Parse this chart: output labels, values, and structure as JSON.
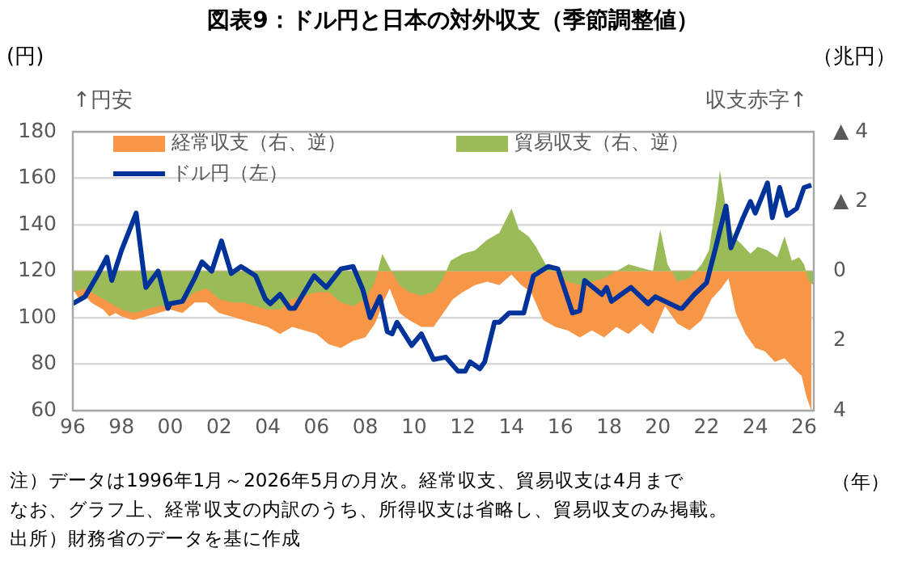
{
  "chart_data": {
    "type": "line",
    "title": "図表9：ドル円と日本の対外収支（季節調整値）",
    "xlabel": "（年）",
    "ylabel": "(円)",
    "y2label": "（兆円）",
    "annotations": [
      "↑円安",
      "収支赤字↑",
      "注）データは1996年1月～2026年5月の月次。経常収支、貿易収支は4月まで",
      "なお、グラフ上、経常収支の内訳のうち、所得収支は省略し、貿易収支のみ掲載。",
      "出所）財務省のデータを基に作成"
    ],
    "xlim": [
      1996,
      2026.4
    ],
    "xticks": [
      {
        "value": 1996,
        "label": "96"
      },
      {
        "value": 1998,
        "label": "98"
      },
      {
        "value": 2000,
        "label": "00"
      },
      {
        "value": 2002,
        "label": "02"
      },
      {
        "value": 2004,
        "label": "04"
      },
      {
        "value": 2006,
        "label": "06"
      },
      {
        "value": 2008,
        "label": "08"
      },
      {
        "value": 2010,
        "label": "10"
      },
      {
        "value": 2012,
        "label": "12"
      },
      {
        "value": 2014,
        "label": "14"
      },
      {
        "value": 2016,
        "label": "16"
      },
      {
        "value": 2018,
        "label": "18"
      },
      {
        "value": 2020,
        "label": "20"
      },
      {
        "value": 2022,
        "label": "22"
      },
      {
        "value": 2024,
        "label": "24"
      },
      {
        "value": 2026,
        "label": "26"
      }
    ],
    "ylim": [
      60,
      180
    ],
    "yticks": [
      60,
      80,
      100,
      120,
      140,
      160,
      180
    ],
    "y2lim": [
      4,
      -4
    ],
    "y2ticks": [
      {
        "value": -4,
        "label": "▲ 4"
      },
      {
        "value": -2,
        "label": "▲ 2"
      },
      0,
      2,
      4
    ],
    "grid": "y",
    "legend": "top",
    "series": [
      {
        "name": "経常収支（右、逆）",
        "color": "#f79646",
        "type": "area",
        "axis": "y2",
        "x": [
          1996,
          1996.25,
          1996.5,
          1996.75,
          1997,
          1997.25,
          1997.5,
          1997.75,
          1998,
          1998.5,
          1999,
          1999.5,
          2000,
          2000.5,
          2001,
          2001.5,
          2002,
          2002.5,
          2003,
          2003.5,
          2004,
          2004.5,
          2005,
          2005.5,
          2006,
          2006.5,
          2007,
          2007.5,
          2008,
          2008.4,
          2008.8,
          2009,
          2009.4,
          2009.8,
          2010.3,
          2010.8,
          2011.2,
          2011.6,
          2012,
          2012.5,
          2013,
          2013.5,
          2014,
          2014.4,
          2014.8,
          2015.3,
          2015.8,
          2016.3,
          2016.8,
          2017.3,
          2017.8,
          2018.3,
          2018.8,
          2019.3,
          2019.8,
          2020.3,
          2020.8,
          2021.3,
          2021.8,
          2022.2,
          2022.6,
          2022.9,
          2023.2,
          2023.6,
          2024,
          2024.4,
          2024.8,
          2025.2,
          2025.6,
          2025.9,
          2026.1,
          2026.3
        ],
        "values": [
          0.5,
          0.8,
          0.7,
          0.9,
          1.0,
          1.1,
          1.3,
          1.2,
          1.3,
          1.4,
          1.3,
          1.2,
          1.1,
          1.2,
          0.9,
          0.9,
          1.2,
          1.3,
          1.4,
          1.5,
          1.6,
          1.8,
          1.6,
          1.7,
          1.8,
          2.1,
          2.2,
          2.0,
          1.9,
          1.5,
          0.8,
          0.5,
          1.2,
          1.4,
          1.6,
          1.6,
          1.2,
          0.8,
          0.6,
          0.4,
          0.3,
          0.4,
          0.1,
          0.4,
          0.6,
          1.4,
          1.6,
          1.7,
          1.9,
          1.7,
          1.9,
          1.6,
          1.8,
          1.5,
          1.8,
          1.0,
          1.5,
          1.7,
          1.4,
          0.8,
          0.5,
          0.2,
          1.2,
          1.8,
          2.2,
          2.3,
          2.6,
          2.5,
          2.8,
          3.0,
          3.6,
          4.0
        ]
      },
      {
        "name": "貿易収支（右、逆）",
        "color": "#9bbb59",
        "type": "area",
        "axis": "y2",
        "x": [
          1996,
          1996.5,
          1997,
          1997.5,
          1998,
          1998.5,
          1999,
          1999.5,
          2000,
          2000.5,
          2001,
          2001.5,
          2002,
          2002.5,
          2003,
          2003.5,
          2004,
          2004.5,
          2005,
          2005.5,
          2006,
          2006.5,
          2007,
          2007.5,
          2008,
          2008.4,
          2008.7,
          2009.0,
          2009.4,
          2009.8,
          2010.3,
          2010.8,
          2011.2,
          2011.5,
          2012,
          2012.5,
          2013,
          2013.5,
          2014,
          2014.3,
          2014.7,
          2015,
          2015.4,
          2015.8,
          2016.3,
          2016.8,
          2017.3,
          2017.8,
          2018.3,
          2018.8,
          2019.3,
          2019.8,
          2020.1,
          2020.4,
          2020.8,
          2021.3,
          2021.8,
          2022.1,
          2022.4,
          2022.55,
          2022.8,
          2023.1,
          2023.4,
          2023.8,
          2024.1,
          2024.5,
          2024.9,
          2025.2,
          2025.5,
          2025.8,
          2026.0,
          2026.2,
          2026.4
        ],
        "values": [
          0.6,
          0.5,
          0.7,
          0.9,
          1.1,
          1.2,
          1.1,
          1.0,
          1.0,
          0.9,
          0.6,
          0.5,
          0.8,
          0.9,
          0.9,
          1.0,
          1.1,
          1.1,
          0.8,
          0.7,
          0.6,
          0.6,
          0.9,
          1.0,
          0.8,
          0.3,
          -0.5,
          -0.1,
          0.4,
          0.6,
          0.7,
          0.6,
          0.2,
          -0.3,
          -0.5,
          -0.6,
          -0.9,
          -1.1,
          -1.8,
          -1.2,
          -1.0,
          -0.7,
          -0.2,
          0.0,
          0.3,
          0.4,
          0.3,
          0.2,
          0.0,
          -0.2,
          -0.1,
          0.0,
          -1.2,
          -0.2,
          0.3,
          0.2,
          -0.2,
          -0.6,
          -2.0,
          -2.9,
          -1.8,
          -1.0,
          -0.8,
          -0.5,
          -0.7,
          -0.6,
          -0.4,
          -1.0,
          -0.3,
          -0.4,
          -0.2,
          0.3,
          0.4
        ]
      },
      {
        "name": "ドル円（左）",
        "color": "#003399",
        "type": "line",
        "axis": "y",
        "x": [
          1996,
          1996.5,
          1997,
          1997.4,
          1997.6,
          1998,
          1998.6,
          1998.9,
          1999,
          1999.5,
          1999.9,
          2000,
          2000.5,
          2001,
          2001.3,
          2001.7,
          2002.1,
          2002.5,
          2002.9,
          2003.5,
          2003.9,
          2004.1,
          2004.5,
          2004.9,
          2005.1,
          2005.9,
          2006,
          2006.4,
          2007,
          2007.5,
          2007.9,
          2008.2,
          2008.6,
          2008.9,
          2009.1,
          2009.3,
          2009.9,
          2010.3,
          2010.8,
          2011.3,
          2011.8,
          2012.1,
          2012.3,
          2012.7,
          2012.9,
          2013.3,
          2013.5,
          2013.9,
          2014.5,
          2014.9,
          2015.5,
          2015.9,
          2016.5,
          2016.8,
          2017,
          2017.7,
          2017.9,
          2018.1,
          2018.9,
          2019.6,
          2019.9,
          2020.3,
          2020.9,
          2021,
          2021.5,
          2022,
          2022.3,
          2022.8,
          2023,
          2023.5,
          2023.8,
          2024,
          2024.5,
          2024.7,
          2025,
          2025.3,
          2025.7,
          2026,
          2026.3
        ],
        "values": [
          106,
          109,
          118,
          126,
          116,
          129,
          145,
          120,
          113,
          120,
          104,
          106,
          107,
          117,
          124,
          120,
          133,
          119,
          122,
          118,
          108,
          106,
          110,
          104,
          104,
          118,
          117,
          113,
          121,
          122,
          112,
          100,
          109,
          94,
          93,
          98,
          88,
          93,
          82,
          83,
          77,
          77,
          81,
          78,
          81,
          98,
          98,
          102,
          102,
          118,
          122,
          121,
          102,
          103,
          116,
          110,
          113,
          107,
          113,
          106,
          109,
          107,
          104,
          104,
          110,
          115,
          127,
          148,
          130,
          143,
          150,
          145,
          158,
          143,
          156,
          144,
          147,
          156,
          157
        ]
      }
    ]
  }
}
